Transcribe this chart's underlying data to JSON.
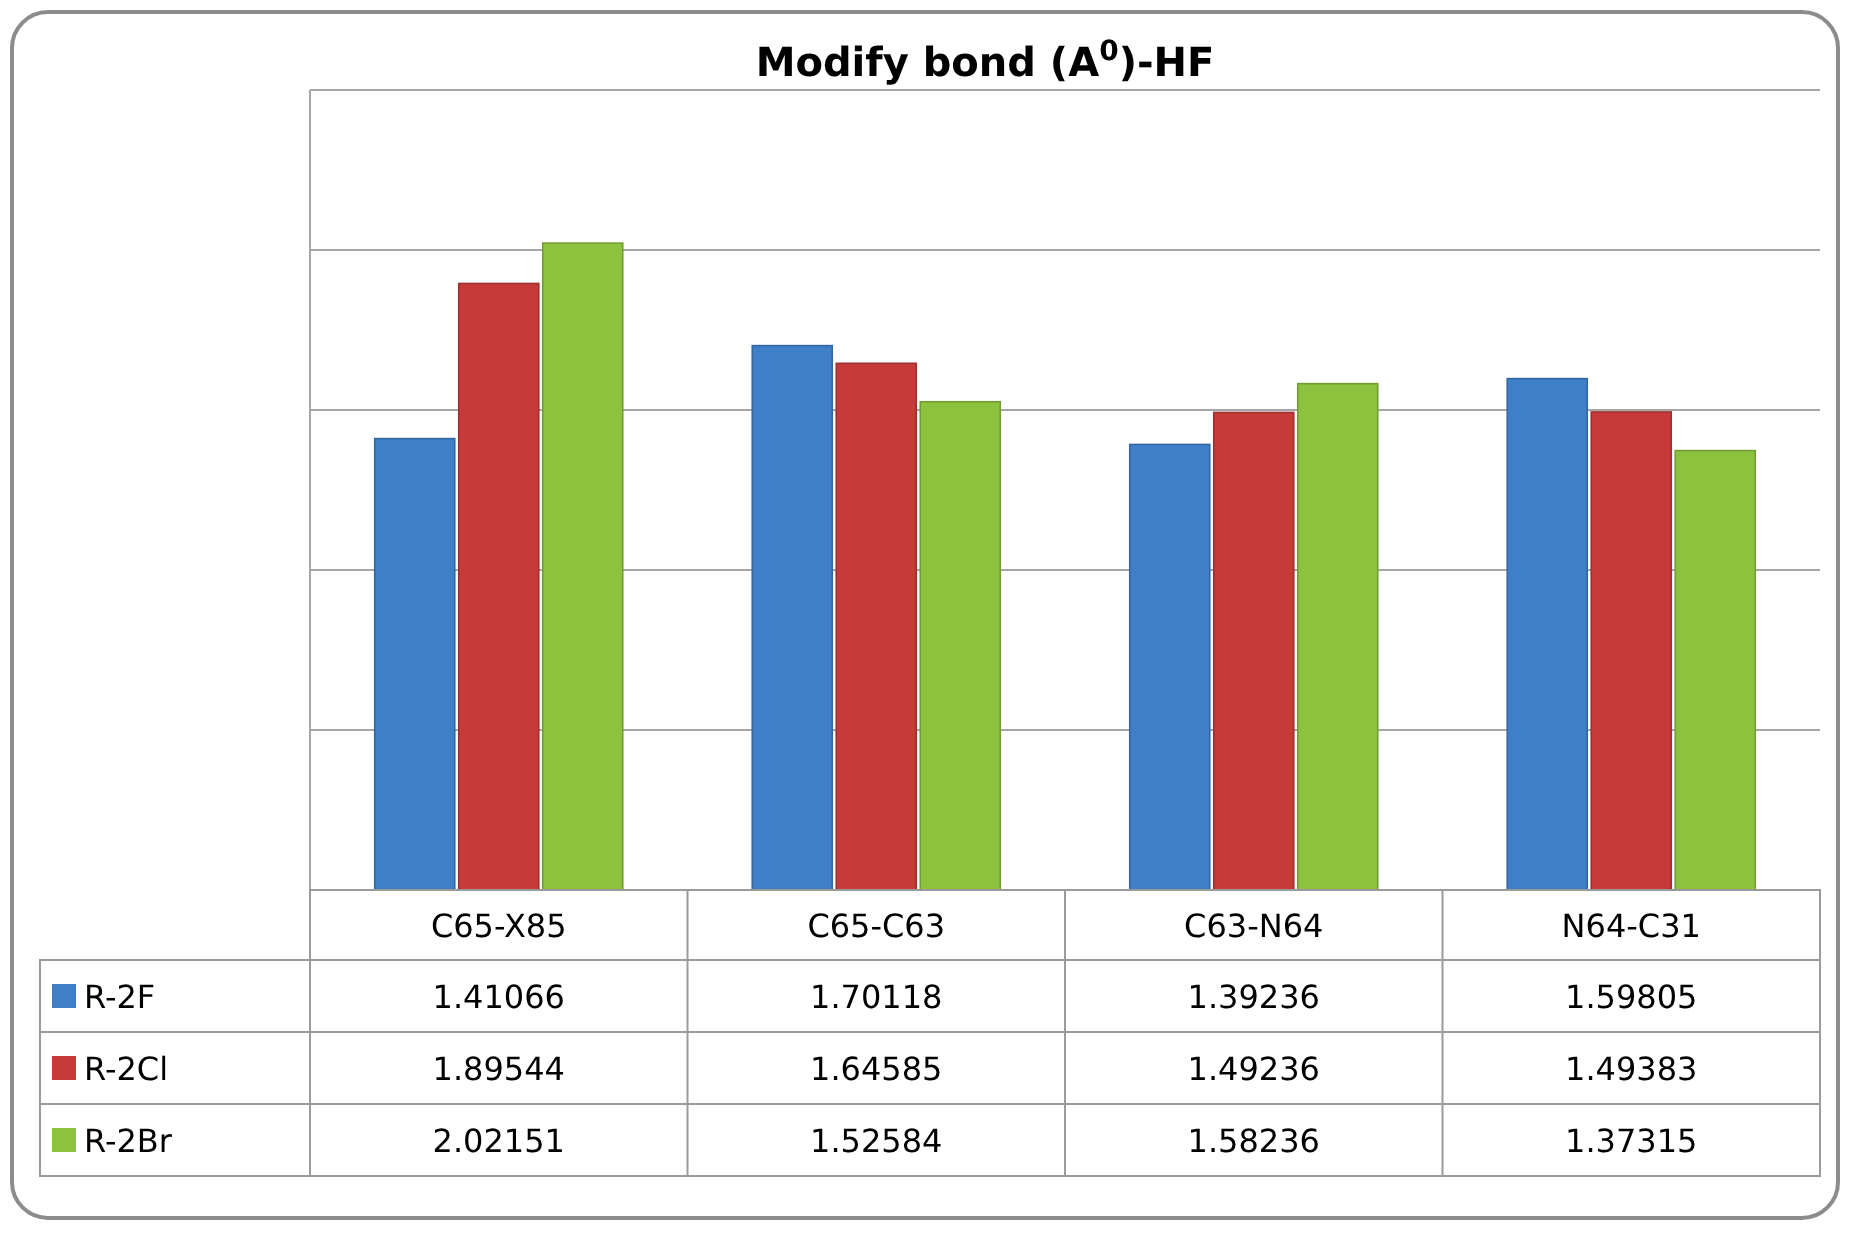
{
  "chart_data": {
    "type": "bar",
    "title": "Modify bond (A$^{0}$)-HF",
    "categories": [
      "C65-X85",
      "C65-C63",
      "C63-N64",
      "N64-C31"
    ],
    "series": [
      {
        "name": "R-2F",
        "color": "#3f7fc8",
        "values": [
          1.41066,
          1.70118,
          1.39236,
          1.59805
        ]
      },
      {
        "name": "R-2Cl",
        "color": "#c63a3a",
        "values": [
          1.89544,
          1.64585,
          1.49236,
          1.49383
        ]
      },
      {
        "name": "R-2Br",
        "color": "#8dc23f",
        "values": [
          2.02151,
          1.52584,
          1.58236,
          1.37315
        ]
      }
    ],
    "ylim": [
      0,
      2.5
    ],
    "yticks": [
      {
        "value": 0.5,
        "label": null
      },
      {
        "value": 1,
        "label": null
      },
      {
        "value": 1.5,
        "label": null
      },
      {
        "value": 2,
        "label": null
      },
      {
        "value": 2.5,
        "label": null
      }
    ],
    "grid": "y",
    "tick_labels": "x",
    "data_labels": true,
    "legend": "bottom left"
  }
}
